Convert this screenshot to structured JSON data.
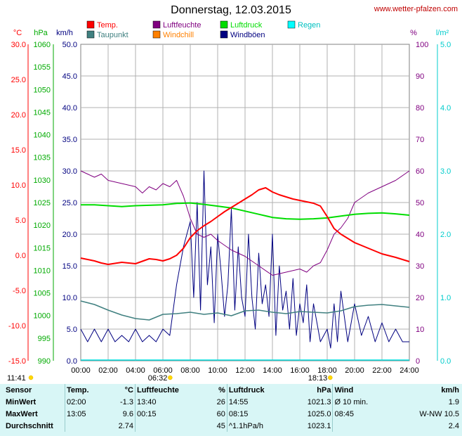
{
  "title": "Donnerstag, 12.03.2015",
  "site": "www.wetter-pfalzen.com",
  "chart_data": {
    "type": "line",
    "title": "Donnerstag, 12.03.2015",
    "x_ticks": [
      "00:00",
      "02:00",
      "04:00",
      "06:00",
      "08:00",
      "10:00",
      "12:00",
      "14:00",
      "16:00",
      "18:00",
      "20:00",
      "22:00",
      "24:00"
    ],
    "x_range_hours": [
      0,
      24
    ],
    "grid": true,
    "legend_position": "top",
    "legend": [
      {
        "label": "Temp.",
        "color": "#ff0000"
      },
      {
        "label": "Luftfeuchte",
        "color": "#800080"
      },
      {
        "label": "Luftdruck",
        "color": "#00dd00"
      },
      {
        "label": "Regen",
        "color": "#00ffff"
      },
      {
        "label": "Taupunkt",
        "color": "#408080"
      },
      {
        "label": "Windchill",
        "color": "#ff8000"
      },
      {
        "label": "Windböen",
        "color": "#000080"
      }
    ],
    "axes": {
      "temp": {
        "unit": "°C",
        "color": "#ff0000",
        "range": [
          -15,
          30
        ],
        "ticks": [
          "30.0",
          "25.0",
          "20.0",
          "15.0",
          "10.0",
          "5.0",
          "0.0",
          "-5.0",
          "-10.0",
          "-15.0"
        ]
      },
      "pressure": {
        "unit": "hPa",
        "color": "#00aa00",
        "range": [
          990,
          1060
        ],
        "ticks": [
          "1060",
          "1055",
          "1050",
          "1045",
          "1040",
          "1035",
          "1030",
          "1025",
          "1020",
          "1015",
          "1010",
          "1005",
          "1000",
          "995",
          "990"
        ]
      },
      "wind": {
        "unit": "km/h",
        "color": "#000080",
        "range": [
          0,
          50
        ],
        "ticks": [
          "50.0",
          "45.0",
          "40.0",
          "35.0",
          "30.0",
          "25.0",
          "20.0",
          "15.0",
          "10.0",
          "5.0",
          "0.0"
        ]
      },
      "humidity": {
        "unit": "%",
        "color": "#800080",
        "range": [
          0,
          100
        ],
        "ticks": [
          "100",
          "90",
          "80",
          "70",
          "60",
          "50",
          "40",
          "30",
          "20",
          "10",
          "0"
        ]
      },
      "rain": {
        "unit": "l/m²",
        "color": "#00cccc",
        "range": [
          0,
          5
        ],
        "ticks": [
          "5.0",
          "4.0",
          "3.0",
          "2.0",
          "1.0",
          "0.0"
        ]
      }
    },
    "series": [
      {
        "name": "Temp.",
        "axis": "temp",
        "x": [
          0,
          0.5,
          1,
          1.5,
          2,
          3,
          4,
          5,
          5.5,
          6,
          6.5,
          7,
          7.5,
          8,
          8.5,
          9,
          9.5,
          10,
          10.5,
          11,
          11.5,
          12,
          12.5,
          13,
          13.5,
          14,
          14.5,
          15,
          15.5,
          16,
          16.5,
          17,
          17.5,
          18,
          18.5,
          19,
          19.5,
          20,
          21,
          22,
          23,
          24
        ],
        "y": [
          -0.4,
          -0.6,
          -0.8,
          -1.1,
          -1.3,
          -1.0,
          -1.2,
          -0.5,
          -0.6,
          -0.8,
          -0.5,
          0.0,
          1.0,
          2.5,
          3.5,
          4.2,
          4.8,
          5.5,
          6.2,
          6.8,
          7.4,
          8.0,
          8.6,
          9.3,
          9.6,
          9.0,
          8.6,
          8.3,
          8.0,
          7.8,
          7.6,
          7.4,
          7.0,
          5.5,
          3.8,
          3.0,
          2.4,
          1.8,
          1.0,
          0.2,
          -0.3,
          -0.9
        ]
      },
      {
        "name": "Luftfeuchte",
        "axis": "humidity",
        "x": [
          0,
          0.5,
          1,
          1.5,
          2,
          3,
          4,
          4.5,
          5,
          5.5,
          6,
          6.5,
          7,
          7.5,
          8,
          8.5,
          9,
          9.5,
          10,
          11,
          12,
          13,
          14,
          15,
          16,
          16.5,
          17,
          17.5,
          18,
          18.5,
          19,
          19.5,
          20,
          21,
          22,
          23,
          24
        ],
        "y": [
          60,
          59,
          58,
          59,
          57,
          56,
          55,
          53,
          55,
          54,
          56,
          55,
          57,
          52,
          45,
          40,
          39,
          40,
          38,
          35,
          33,
          30,
          27,
          28,
          29,
          28,
          30,
          31,
          35,
          40,
          42,
          45,
          50,
          53,
          55,
          57,
          60
        ]
      },
      {
        "name": "Luftdruck",
        "axis": "pressure",
        "x": [
          0,
          1,
          2,
          3,
          4,
          5,
          6,
          7,
          8,
          9,
          10,
          11,
          12,
          13,
          14,
          15,
          16,
          17,
          18,
          19,
          20,
          21,
          22,
          23,
          24
        ],
        "y": [
          1024.5,
          1024.5,
          1024.3,
          1024.1,
          1024.3,
          1024.4,
          1024.5,
          1024.8,
          1024.9,
          1024.6,
          1024.2,
          1023.8,
          1023.1,
          1022.4,
          1021.7,
          1021.4,
          1021.3,
          1021.4,
          1021.6,
          1022.0,
          1022.4,
          1022.6,
          1022.7,
          1022.5,
          1022.2
        ]
      },
      {
        "name": "Taupunkt",
        "axis": "temp",
        "x": [
          0,
          1,
          2,
          3,
          4,
          5,
          6,
          7,
          8,
          9,
          10,
          11,
          12,
          13,
          14,
          15,
          16,
          17,
          18,
          19,
          20,
          21,
          22,
          23,
          24
        ],
        "y": [
          -6.5,
          -7.0,
          -7.8,
          -8.5,
          -9.0,
          -9.2,
          -8.4,
          -8.3,
          -8.1,
          -8.4,
          -8.2,
          -8.6,
          -7.9,
          -7.8,
          -8.1,
          -8.3,
          -8.0,
          -8.1,
          -8.2,
          -7.9,
          -7.3,
          -7.1,
          -7.0,
          -7.2,
          -7.4
        ]
      },
      {
        "name": "Windböen",
        "axis": "wind",
        "x": [
          0,
          0.5,
          1,
          1.5,
          2,
          2.5,
          3,
          3.5,
          4,
          4.5,
          5,
          5.5,
          6,
          6.5,
          7,
          7.5,
          8,
          8.25,
          8.5,
          8.75,
          9,
          9.25,
          9.5,
          9.75,
          10,
          10.25,
          10.5,
          10.75,
          11,
          11.25,
          11.5,
          11.75,
          12,
          12.25,
          12.5,
          12.75,
          13,
          13.25,
          13.5,
          13.75,
          14,
          14.25,
          14.5,
          14.75,
          15,
          15.25,
          15.5,
          15.75,
          16,
          16.25,
          16.5,
          16.75,
          17,
          17.5,
          18,
          18.25,
          18.5,
          18.75,
          19,
          19.5,
          20,
          20.5,
          21,
          21.5,
          22,
          22.5,
          23,
          23.5,
          24
        ],
        "y": [
          5,
          3,
          5,
          3,
          5,
          3,
          4,
          3,
          5,
          3,
          4,
          3,
          5,
          4,
          12,
          18,
          22,
          10,
          25,
          8,
          30,
          12,
          18,
          6,
          20,
          14,
          7,
          12,
          24,
          8,
          18,
          10,
          7,
          20,
          10,
          5,
          17,
          9,
          12,
          7,
          20,
          4,
          15,
          8,
          11,
          5,
          13,
          4,
          9,
          6,
          12,
          3,
          9,
          3,
          5,
          2,
          9,
          3,
          11,
          3,
          9,
          4,
          7,
          3,
          6,
          3,
          5,
          3,
          3
        ]
      }
    ],
    "markers": [
      {
        "label": "11:41",
        "hour": 11.7
      },
      {
        "label": "06:32",
        "hour": 6.53
      },
      {
        "label": "18:13",
        "hour": 18.22
      }
    ]
  },
  "summary": {
    "headers": {
      "sensor": "Sensor",
      "temp": "Temp.",
      "temp_unit": "°C",
      "hum": "Luftfeuchte",
      "hum_unit": "%",
      "press": "Luftdruck",
      "press_unit": "hPa",
      "wind": "Wind",
      "wind_unit": "km/h"
    },
    "rows": [
      {
        "label": "MinWert",
        "t_time": "02:00",
        "t_val": "-1.3",
        "h_time": "13:40",
        "h_val": "26",
        "p_time": "14:55",
        "p_val": "1021.3",
        "w_time": "Ø 10 min.",
        "w_val": "1.9"
      },
      {
        "label": "MaxWert",
        "t_time": "13:05",
        "t_val": "9.6",
        "h_time": "00:15",
        "h_val": "60",
        "p_time": "08:15",
        "p_val": "1025.0",
        "w_time": "08:45",
        "w_val": "W-NW 10.5"
      },
      {
        "label": "Durchschnitt",
        "t_time": "",
        "t_val": "2.74",
        "h_time": "",
        "h_val": "45",
        "p_time": "^1.1hPa/h",
        "p_val": "1023.1",
        "w_time": "",
        "w_val": "2.4"
      }
    ]
  }
}
